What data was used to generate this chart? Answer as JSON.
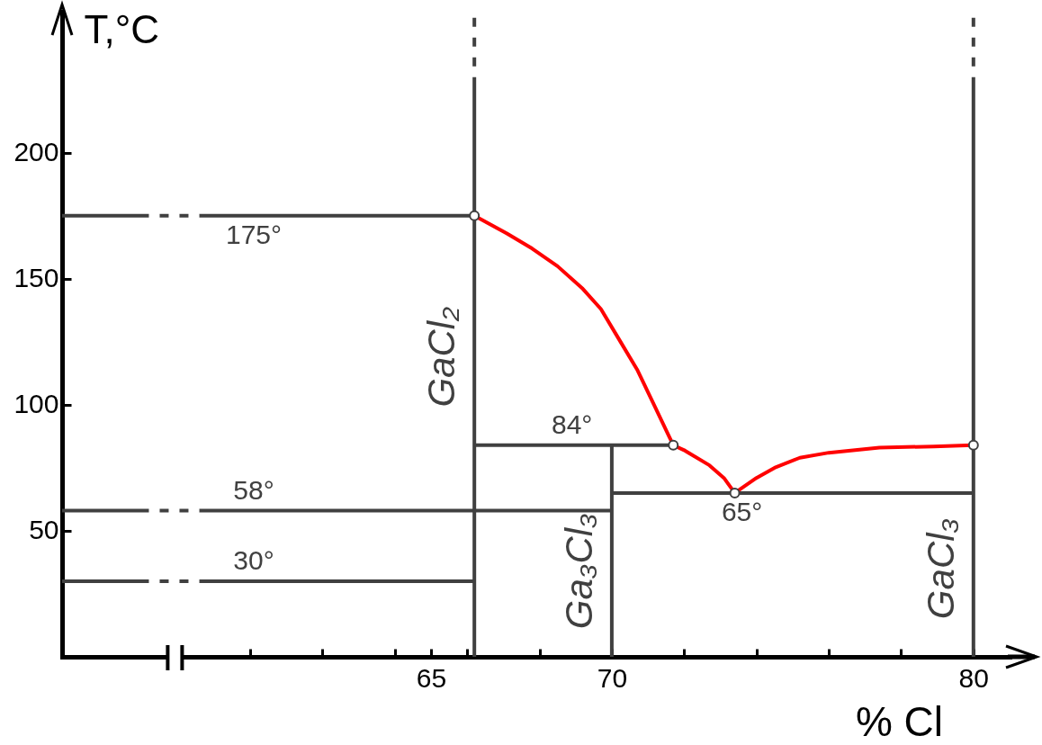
{
  "chart_data": {
    "type": "line",
    "xlabel": "% Cl",
    "ylabel": "T,°C",
    "xlim": [
      54.8,
      81
    ],
    "ylim": [
      0,
      256
    ],
    "xticks": [
      {
        "value": 60,
        "label": null
      },
      {
        "value": 62,
        "label": null
      },
      {
        "value": 64,
        "label": null
      },
      65,
      {
        "value": 66,
        "label": null
      },
      {
        "value": 68,
        "label": null
      },
      70,
      {
        "value": 72,
        "label": null
      },
      {
        "value": 74,
        "label": null
      },
      {
        "value": 76,
        "label": null
      },
      {
        "value": 78,
        "label": null
      },
      80
    ],
    "yticks": [
      50,
      100,
      150,
      200
    ],
    "series": [
      {
        "color": "#404040",
        "x": [
          54.8,
          57.2
        ],
        "values": [
          175,
          175
        ]
      },
      {
        "color": "#404040",
        "x": [
          57.2,
          58.6
        ],
        "values": [
          175,
          175
        ],
        "line_style": "dashed"
      },
      {
        "color": "#404040",
        "x": [
          58.6,
          66.2
        ],
        "values": [
          175,
          175
        ]
      },
      {
        "color": "#404040",
        "x": [
          54.8,
          57.2
        ],
        "values": [
          58,
          58
        ]
      },
      {
        "color": "#404040",
        "x": [
          57.2,
          58.6
        ],
        "values": [
          58,
          58
        ],
        "line_style": "dashed"
      },
      {
        "color": "#404040",
        "x": [
          58.6,
          70
        ],
        "values": [
          58,
          58
        ]
      },
      {
        "color": "#404040",
        "x": [
          54.8,
          57.2
        ],
        "values": [
          30,
          30
        ]
      },
      {
        "color": "#404040",
        "x": [
          57.2,
          58.6
        ],
        "values": [
          30,
          30
        ],
        "line_style": "dashed"
      },
      {
        "color": "#404040",
        "x": [
          58.6,
          66.2
        ],
        "values": [
          30,
          30
        ]
      },
      {
        "color": "#404040",
        "x": [
          66.2,
          71.7
        ],
        "values": [
          84,
          84
        ]
      },
      {
        "color": "#404040",
        "x": [
          70,
          80
        ],
        "values": [
          65,
          65
        ]
      },
      {
        "color": "#404040",
        "x": [
          66.2,
          66.2
        ],
        "values": [
          0,
          230
        ]
      },
      {
        "color": "#404040",
        "x": [
          66.2,
          66.2
        ],
        "values": [
          230,
          256
        ],
        "line_style": "dashed"
      },
      {
        "color": "#404040",
        "x": [
          70,
          70
        ],
        "values": [
          0,
          84
        ]
      },
      {
        "color": "#404040",
        "x": [
          80,
          80
        ],
        "values": [
          0,
          230
        ]
      },
      {
        "color": "#404040",
        "x": [
          80,
          80
        ],
        "values": [
          230,
          256
        ],
        "line_style": "dashed"
      },
      {
        "color": "#ff0000",
        "x": [
          66.2,
          67.1,
          67.8,
          68.5,
          69.2,
          69.7,
          70.2,
          70.7,
          71.2,
          71.6,
          71.7,
          72.0,
          72.7,
          73.1,
          73.4,
          74.0,
          74.5,
          75.2,
          76.0,
          77.4,
          78.9,
          80
        ],
        "values": [
          175,
          168,
          162,
          155,
          146,
          138,
          126,
          114,
          99,
          87,
          84,
          82,
          76,
          71,
          65,
          71,
          75,
          79,
          81,
          83,
          83.5,
          84
        ]
      },
      {
        "type": "scatter",
        "color": "#404040",
        "marker": "circle",
        "x": [
          66.2,
          71.7,
          73.4,
          80
        ],
        "values": [
          175,
          84,
          65,
          84
        ]
      }
    ],
    "annotations": [
      {
        "text": "175°",
        "x": 60.1,
        "y": 175
      },
      {
        "text": "84°",
        "x": 68.9,
        "y": 84
      },
      {
        "text": "58°",
        "x": 60.1,
        "y": 58
      },
      {
        "text": "30°",
        "x": 60.1,
        "y": 30
      },
      {
        "text": "65°",
        "x": 73.6,
        "y": 65
      },
      {
        "text": "GaCl₂",
        "x": 66.2,
        "y": 119
      },
      {
        "text": "Ga₃Cl₃",
        "x": 70,
        "y": 34
      },
      {
        "text": "GaCl₃",
        "x": 80,
        "y": 35
      }
    ]
  }
}
